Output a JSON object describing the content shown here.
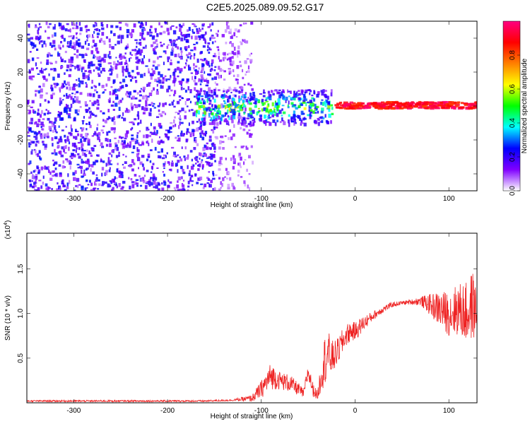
{
  "title": "C2E5.2025.089.09.52.G17",
  "chart_data": [
    {
      "type": "heatmap",
      "xlabel": "Height of straight line (km)",
      "ylabel": "Frequency (Hz)",
      "xlim": [
        -350,
        130
      ],
      "ylim": [
        -50,
        50
      ],
      "x_ticks": [
        -300,
        -200,
        -100,
        0,
        100
      ],
      "x_tick_labels": [
        "-300",
        "-200",
        "-100",
        "0",
        "100"
      ],
      "y_ticks": [
        -40,
        -20,
        0,
        20,
        40
      ],
      "y_tick_labels": [
        "-40",
        "-20",
        "0",
        "20",
        "40"
      ],
      "colorbar": {
        "label": "Normalized spectral amplitude",
        "range": [
          0,
          1
        ],
        "ticks": [
          0.0,
          0.2,
          0.4,
          0.6,
          0.8
        ],
        "tick_labels": [
          "0.0",
          "0.2",
          "0.4",
          "0.6",
          "0.8"
        ],
        "colors": [
          "#ffffff",
          "#8000ff",
          "#0000ff",
          "#00ffff",
          "#00ff00",
          "#ffff00",
          "#ff8000",
          "#ff0000",
          "#ff0080"
        ]
      },
      "regions": [
        {
          "x_range": [
            -350,
            -150
          ],
          "freq_range": [
            -50,
            50
          ],
          "level": 0.15,
          "pattern": "scattered noise"
        },
        {
          "x_range": [
            -150,
            -110
          ],
          "freq_range": [
            -50,
            50
          ],
          "level": 0.08,
          "pattern": "sparse noise"
        },
        {
          "x_range": [
            -170,
            -25
          ],
          "freq_range": [
            -10,
            10
          ],
          "level": 0.35,
          "pattern": "signal onset"
        },
        {
          "x_range": [
            -25,
            130
          ],
          "freq_range": [
            -1,
            3
          ],
          "level": 0.95,
          "pattern": "coherent line near 1.5 Hz"
        }
      ]
    },
    {
      "type": "line",
      "xlabel": "Height of straight line (km)",
      "ylabel": "SNR (10 * v/v)",
      "y_multiplier": "(x10^4)",
      "xlim": [
        -350,
        130
      ],
      "ylim": [
        0,
        1.9
      ],
      "x_ticks": [
        -300,
        -200,
        -100,
        0,
        100
      ],
      "x_tick_labels": [
        "-300",
        "-200",
        "-100",
        "0",
        "100"
      ],
      "y_ticks": [
        0.5,
        1.0,
        1.5
      ],
      "y_tick_labels": [
        "0.5",
        "1.0",
        "1.5"
      ],
      "color": "#ee2222",
      "series": [
        {
          "x": [
            -350,
            -300,
            -250,
            -200,
            -160,
            -130,
            -110,
            -100,
            -90,
            -80,
            -70,
            -60,
            -55,
            -50,
            -45,
            -40,
            -35,
            -30,
            -25,
            -20,
            -15,
            -10,
            -5,
            0,
            5,
            10,
            20,
            30,
            40,
            50,
            60,
            70,
            80,
            90,
            100,
            110,
            120,
            125,
            130
          ],
          "y": [
            0.02,
            0.02,
            0.02,
            0.02,
            0.02,
            0.03,
            0.05,
            0.15,
            0.3,
            0.25,
            0.22,
            0.15,
            0.1,
            0.35,
            0.15,
            0.08,
            0.4,
            0.55,
            0.5,
            0.55,
            0.65,
            0.75,
            0.8,
            0.8,
            0.85,
            0.9,
            0.98,
            1.05,
            1.1,
            1.12,
            1.13,
            1.14,
            1.1,
            1.05,
            1.0,
            1.05,
            1.0,
            1.1,
            1.0
          ],
          "noise": [
            0.01,
            0.01,
            0.01,
            0.01,
            0.01,
            0.01,
            0.04,
            0.1,
            0.15,
            0.1,
            0.1,
            0.07,
            0.05,
            0.1,
            0.08,
            0.05,
            0.25,
            0.3,
            0.2,
            0.15,
            0.15,
            0.12,
            0.12,
            0.1,
            0.1,
            0.08,
            0.05,
            0.04,
            0.03,
            0.02,
            0.03,
            0.05,
            0.12,
            0.2,
            0.25,
            0.3,
            0.35,
            0.4,
            0.25
          ]
        }
      ]
    }
  ]
}
